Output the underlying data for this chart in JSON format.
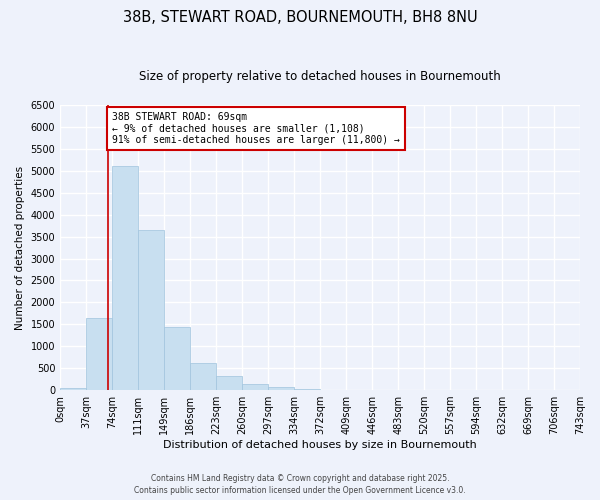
{
  "title": "38B, STEWART ROAD, BOURNEMOUTH, BH8 8NU",
  "subtitle": "Size of property relative to detached houses in Bournemouth",
  "xlabel": "Distribution of detached houses by size in Bournemouth",
  "ylabel": "Number of detached properties",
  "bin_edges": [
    0,
    37,
    74,
    111,
    149,
    186,
    223,
    260,
    297,
    334,
    372,
    409,
    446,
    483,
    520,
    557,
    594,
    632,
    669,
    706,
    743
  ],
  "bar_heights": [
    50,
    1650,
    5100,
    3650,
    1440,
    620,
    320,
    150,
    70,
    30,
    10,
    0,
    0,
    0,
    0,
    0,
    0,
    0,
    0,
    0
  ],
  "bar_color": "#c8dff0",
  "bar_edge_color": "#a0c4de",
  "property_line_x": 69,
  "ylim": [
    0,
    6500
  ],
  "yticks": [
    0,
    500,
    1000,
    1500,
    2000,
    2500,
    3000,
    3500,
    4000,
    4500,
    5000,
    5500,
    6000,
    6500
  ],
  "annotation_title": "38B STEWART ROAD: 69sqm",
  "annotation_line1": "← 9% of detached houses are smaller (1,108)",
  "annotation_line2": "91% of semi-detached houses are larger (11,800) →",
  "annotation_box_facecolor": "#ffffff",
  "annotation_box_edgecolor": "#cc0000",
  "property_line_color": "#cc0000",
  "footer_line1": "Contains HM Land Registry data © Crown copyright and database right 2025.",
  "footer_line2": "Contains public sector information licensed under the Open Government Licence v3.0.",
  "background_color": "#eef2fb",
  "grid_color": "#ffffff",
  "title_fontsize": 10.5,
  "subtitle_fontsize": 8.5,
  "xlabel_fontsize": 8,
  "ylabel_fontsize": 7.5,
  "tick_fontsize": 7,
  "annotation_fontsize": 7,
  "footer_fontsize": 5.5
}
